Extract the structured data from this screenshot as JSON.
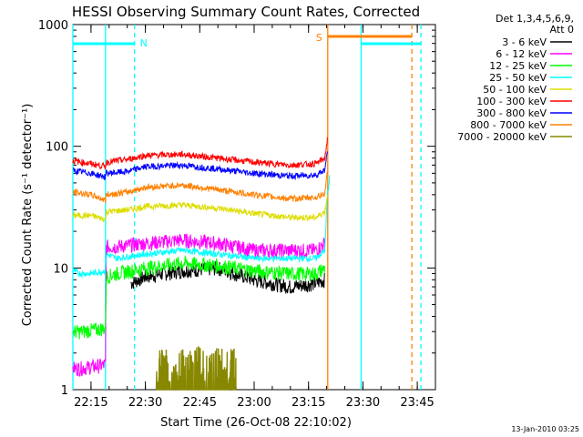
{
  "chart_data": {
    "type": "line",
    "title": "HESSI Observing Summary Count Rates, Corrected",
    "xlabel": "Start Time (26-Oct-08 22:10:02)",
    "ylabel": "Corrected Count Rate (s⁻¹ detector⁻¹)",
    "yscale": "log",
    "ylim": [
      1,
      1000
    ],
    "y_ticks": [
      "1",
      "10",
      "100",
      "1000"
    ],
    "x_range_minutes": [
      0,
      100
    ],
    "x_ticks": [
      {
        "label": "22:15",
        "min": 5
      },
      {
        "label": "22:30",
        "min": 20
      },
      {
        "label": "22:45",
        "min": 35
      },
      {
        "label": "23:00",
        "min": 50
      },
      {
        "label": "23:15",
        "min": 65
      },
      {
        "label": "23:30",
        "min": 80
      },
      {
        "label": "23:45",
        "min": 95
      }
    ],
    "legend_header": [
      "Det 1,3,4,5,6,9,",
      "Att 0"
    ],
    "legend_position": "right",
    "series": [
      {
        "name": "3 - 6 keV",
        "color": "#000000",
        "x": [
          16,
          20,
          30,
          40,
          50,
          60,
          67,
          69.5
        ],
        "y": [
          7.5,
          8.5,
          9.5,
          10,
          8,
          7,
          7.5,
          8
        ]
      },
      {
        "name": "6 - 12 keV",
        "color": "#ff00ff",
        "x": [
          0,
          2,
          9,
          9.2,
          12,
          20,
          30,
          40,
          50,
          60,
          67,
          69.5
        ],
        "y": [
          1.5,
          1.5,
          1.6,
          15,
          15,
          16,
          17,
          16,
          14,
          14,
          14,
          16
        ]
      },
      {
        "name": "12 - 25 keV",
        "color": "#00ff00",
        "x": [
          0,
          2,
          9,
          9.2,
          12,
          20,
          30,
          40,
          50,
          60,
          67,
          69.5
        ],
        "y": [
          3,
          3,
          3.2,
          8.5,
          9,
          10,
          11,
          10.5,
          9.5,
          9,
          9,
          10
        ]
      },
      {
        "name": "25 - 50 keV",
        "color": "#00ffff",
        "x": [
          0,
          2,
          5,
          9,
          9.2,
          12,
          20,
          30,
          40,
          50,
          60,
          67,
          69.5,
          70.2,
          71
        ],
        "y": [
          9.5,
          9,
          9,
          9.5,
          13,
          12,
          13,
          14,
          13,
          12,
          12,
          12,
          14,
          40,
          60
        ]
      },
      {
        "name": "50 - 100 keV",
        "color": "#dddd00",
        "x": [
          0,
          5,
          9,
          9.2,
          15,
          20,
          30,
          40,
          50,
          60,
          67,
          69.5,
          70.2
        ],
        "y": [
          27,
          27,
          25,
          29,
          30,
          32,
          33,
          31,
          28,
          26,
          26,
          29,
          40
        ]
      },
      {
        "name": "100 - 300 keV",
        "color": "#ff0000",
        "x": [
          0,
          5,
          9,
          9.2,
          15,
          20,
          30,
          40,
          50,
          60,
          67,
          69.5,
          70.2
        ],
        "y": [
          76,
          72,
          68,
          74,
          78,
          84,
          86,
          80,
          74,
          70,
          72,
          80,
          115
        ]
      },
      {
        "name": "300 - 800 keV",
        "color": "#0000ff",
        "x": [
          0,
          5,
          9,
          9.2,
          15,
          20,
          30,
          40,
          50,
          60,
          67,
          69.5,
          70.2
        ],
        "y": [
          63,
          60,
          56,
          60,
          62,
          68,
          70,
          65,
          60,
          57,
          58,
          64,
          90
        ]
      },
      {
        "name": "800 - 7000 keV",
        "color": "#ff8000",
        "x": [
          0,
          5,
          9,
          9.2,
          15,
          20,
          30,
          40,
          50,
          60,
          67,
          69.5,
          70.2
        ],
        "y": [
          42,
          40,
          36,
          40,
          42,
          46,
          48,
          44,
          40,
          37,
          38,
          41,
          60
        ]
      },
      {
        "name": "7000 - 20000 keV",
        "color": "#888800",
        "x": [
          23,
          25,
          28,
          30,
          33,
          35,
          38,
          40,
          43,
          45
        ],
        "y": [
          1.5,
          1.8,
          1.4,
          1.8,
          1.6,
          1.8,
          1.5,
          1.8,
          1.6,
          1.8
        ]
      }
    ],
    "vertical_lines": [
      {
        "min": 0,
        "color": "#00ffff",
        "style": "solid"
      },
      {
        "min": 9,
        "color": "#00ffff",
        "style": "solid"
      },
      {
        "min": 17,
        "color": "#00ffff",
        "style": "dashed"
      },
      {
        "min": 70.3,
        "color": "#ff8000",
        "style": "solid"
      },
      {
        "min": 79.5,
        "color": "#00ffff",
        "style": "solid"
      },
      {
        "min": 93.5,
        "color": "#ff8000",
        "style": "dashed"
      },
      {
        "min": 96,
        "color": "#00ffff",
        "style": "dashed"
      }
    ],
    "flag_bars": [
      {
        "label": "N",
        "color": "#00ffff",
        "from": 0,
        "to": 17
      },
      {
        "label": "S",
        "color": "#ff8000",
        "from": 70.3,
        "to": 93.5
      },
      {
        "label": "",
        "color": "#00ffff",
        "from": 79.5,
        "to": 96
      }
    ],
    "timestamp": "13-Jan-2010 03:25"
  }
}
